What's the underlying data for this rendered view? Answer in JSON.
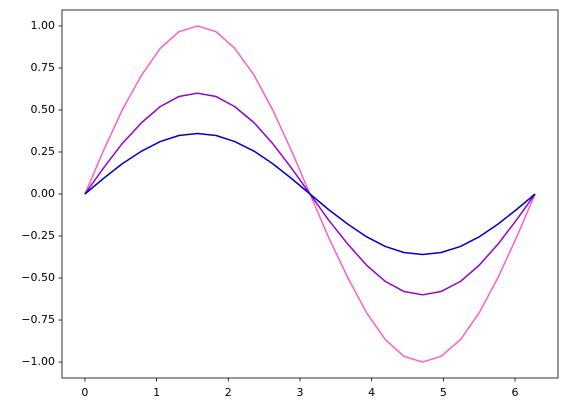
{
  "chart_data": {
    "type": "line",
    "x": [
      0,
      0.26,
      0.52,
      0.79,
      1.05,
      1.31,
      1.57,
      1.83,
      2.09,
      2.36,
      2.62,
      2.88,
      3.14,
      3.4,
      3.67,
      3.93,
      4.19,
      4.45,
      4.71,
      4.97,
      5.24,
      5.5,
      5.76,
      6.02,
      6.28
    ],
    "series": [
      {
        "color": "#ff5ec4",
        "values": [
          0,
          0.259,
          0.5,
          0.707,
          0.866,
          0.966,
          1,
          0.966,
          0.866,
          0.707,
          0.5,
          0.259,
          0,
          -0.259,
          -0.5,
          -0.707,
          -0.866,
          -0.966,
          -1,
          -0.966,
          -0.866,
          -0.707,
          -0.5,
          -0.259,
          0
        ]
      },
      {
        "color": "#9400d3",
        "values": [
          0,
          0.155,
          0.3,
          0.424,
          0.52,
          0.58,
          0.6,
          0.58,
          0.52,
          0.424,
          0.3,
          0.155,
          0,
          -0.155,
          -0.3,
          -0.424,
          -0.52,
          -0.58,
          -0.6,
          -0.58,
          -0.52,
          -0.424,
          -0.3,
          -0.155,
          0
        ]
      },
      {
        "color": "#0000cd",
        "values": [
          0,
          0.093,
          0.18,
          0.255,
          0.312,
          0.348,
          0.36,
          0.348,
          0.312,
          0.255,
          0.18,
          0.093,
          0,
          -0.093,
          -0.18,
          -0.255,
          -0.312,
          -0.348,
          -0.36,
          -0.348,
          -0.312,
          -0.255,
          -0.18,
          -0.093,
          0
        ]
      }
    ],
    "xlim": [
      -0.32,
      6.6
    ],
    "ylim": [
      -1.095,
      1.095
    ],
    "xticks": [
      0,
      1,
      2,
      3,
      4,
      5,
      6
    ],
    "yticks": [
      {
        "value": -1,
        "label": "−1.00"
      },
      {
        "value": -0.75,
        "label": "−0.75"
      },
      {
        "value": -0.5,
        "label": "−0.50"
      },
      {
        "value": -0.25,
        "label": "−0.25"
      },
      {
        "value": 0,
        "label": "0.00"
      },
      {
        "value": 0.25,
        "label": "0.25"
      },
      {
        "value": 0.5,
        "label": "0.50"
      },
      {
        "value": 0.75,
        "label": "0.75"
      },
      {
        "value": 1,
        "label": "1.00"
      }
    ],
    "grid": false
  }
}
